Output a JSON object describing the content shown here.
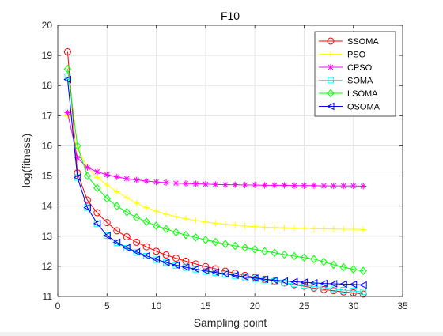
{
  "chart_data": {
    "type": "line",
    "title": "F10",
    "xlabel": "Sampling point",
    "ylabel": "log(fitness)",
    "xlim": [
      0,
      35
    ],
    "ylim": [
      11,
      20
    ],
    "xticks": [
      0,
      5,
      10,
      15,
      20,
      25,
      30,
      35
    ],
    "yticks": [
      11,
      12,
      13,
      14,
      15,
      16,
      17,
      18,
      19,
      20
    ],
    "grid": true,
    "legend_position": "top-right",
    "x": [
      1,
      2,
      3,
      4,
      5,
      6,
      7,
      8,
      9,
      10,
      11,
      12,
      13,
      14,
      15,
      16,
      17,
      18,
      19,
      20,
      21,
      22,
      23,
      24,
      25,
      26,
      27,
      28,
      29,
      30,
      31
    ],
    "series": [
      {
        "name": "SSOMA",
        "color": "#ff0000",
        "marker": "circle",
        "values": [
          19.12,
          15.1,
          14.2,
          13.78,
          13.45,
          13.18,
          12.98,
          12.8,
          12.65,
          12.5,
          12.38,
          12.27,
          12.17,
          12.08,
          11.99,
          11.92,
          11.84,
          11.77,
          11.7,
          11.63,
          11.57,
          11.51,
          11.45,
          11.39,
          11.34,
          11.28,
          11.23,
          11.19,
          11.15,
          11.12,
          11.08
        ]
      },
      {
        "name": "PSO",
        "color": "#ffff00",
        "marker": "plus",
        "values": [
          17.0,
          15.9,
          15.3,
          14.95,
          14.7,
          14.48,
          14.28,
          14.1,
          13.95,
          13.83,
          13.73,
          13.65,
          13.58,
          13.52,
          13.47,
          13.43,
          13.4,
          13.37,
          13.34,
          13.32,
          13.3,
          13.29,
          13.28,
          13.27,
          13.26,
          13.25,
          13.24,
          13.24,
          13.23,
          13.23,
          13.22
        ]
      },
      {
        "name": "CPSO",
        "color": "#ff00ff",
        "marker": "star",
        "values": [
          17.1,
          15.6,
          15.28,
          15.14,
          15.04,
          14.97,
          14.91,
          14.87,
          14.83,
          14.8,
          14.78,
          14.76,
          14.75,
          14.74,
          14.73,
          14.72,
          14.71,
          14.71,
          14.7,
          14.7,
          14.69,
          14.69,
          14.69,
          14.68,
          14.68,
          14.68,
          14.67,
          14.67,
          14.67,
          14.67,
          14.66
        ]
      },
      {
        "name": "SOMA",
        "color": "#00ffff",
        "marker": "square",
        "values": [
          18.3,
          14.95,
          13.95,
          13.42,
          13.02,
          12.78,
          12.6,
          12.46,
          12.34,
          12.22,
          12.12,
          12.03,
          11.96,
          11.9,
          11.84,
          11.79,
          11.74,
          11.69,
          11.64,
          11.59,
          11.54,
          11.5,
          11.45,
          11.41,
          11.37,
          11.33,
          11.29,
          11.25,
          11.21,
          11.18,
          11.15
        ]
      },
      {
        "name": "LSOMA",
        "color": "#00ff00",
        "marker": "diamond",
        "values": [
          18.55,
          16.0,
          15.0,
          14.6,
          14.25,
          14.0,
          13.8,
          13.62,
          13.48,
          13.35,
          13.24,
          13.13,
          13.04,
          12.96,
          12.88,
          12.81,
          12.74,
          12.68,
          12.62,
          12.56,
          12.5,
          12.45,
          12.39,
          12.34,
          12.29,
          12.24,
          12.15,
          12.05,
          11.97,
          11.9,
          11.85
        ]
      },
      {
        "name": "OSOMA",
        "color": "#0000ff",
        "marker": "triangle-left",
        "values": [
          18.2,
          14.95,
          13.95,
          13.42,
          13.02,
          12.8,
          12.62,
          12.48,
          12.35,
          12.23,
          12.13,
          12.04,
          11.97,
          11.91,
          11.85,
          11.8,
          11.75,
          11.7,
          11.65,
          11.61,
          11.57,
          11.54,
          11.51,
          11.49,
          11.47,
          11.45,
          11.43,
          11.42,
          11.41,
          11.4,
          11.38
        ]
      }
    ]
  }
}
